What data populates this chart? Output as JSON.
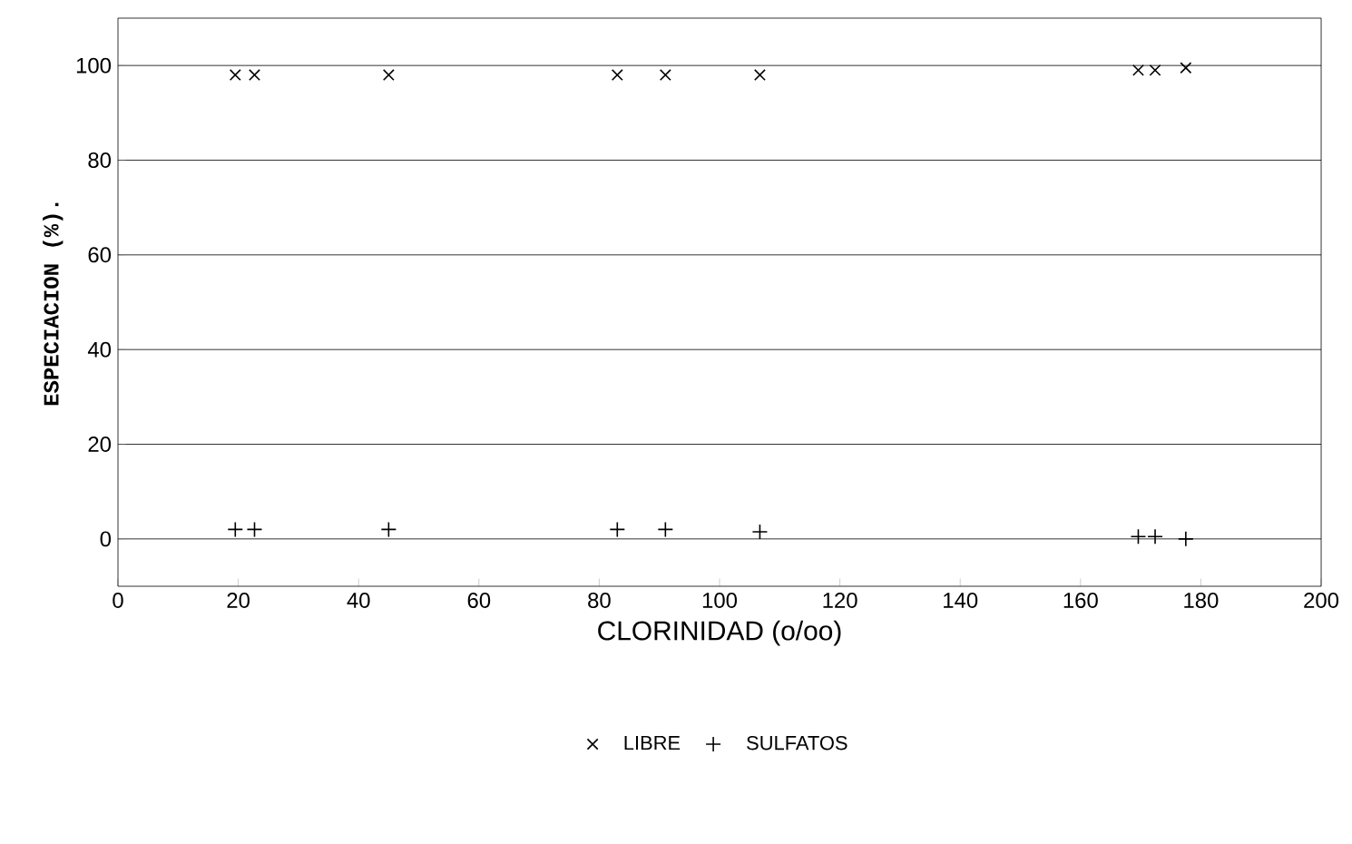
{
  "chart_data": {
    "type": "scatter",
    "xlabel": "CLORINIDAD (o/oo)",
    "ylabel": "ESPECIACION (%).",
    "xlim": [
      0,
      200
    ],
    "xticks": [
      0,
      20,
      40,
      60,
      80,
      100,
      120,
      140,
      160,
      180,
      200
    ],
    "ylim": [
      -10,
      110
    ],
    "yticks": [
      0,
      20,
      40,
      60,
      80,
      100
    ],
    "grid": "y",
    "legend": "bottom",
    "series": [
      {
        "name": "LIBRE",
        "color": "#000000",
        "marker": "cross",
        "x": [
          19.5,
          22.7,
          45,
          83,
          91,
          106.7,
          169.6,
          172.4,
          177.5
        ],
        "values": [
          98,
          98,
          98,
          98,
          98,
          98,
          99,
          99,
          99.5
        ]
      },
      {
        "name": "SULFATOS",
        "color": "#000000",
        "marker": "plus",
        "x": [
          19.5,
          22.7,
          45,
          83,
          91,
          106.7,
          169.6,
          172.4,
          177.5
        ],
        "values": [
          2,
          2,
          2,
          2,
          2,
          1.5,
          0.5,
          0.5,
          0
        ]
      }
    ]
  }
}
